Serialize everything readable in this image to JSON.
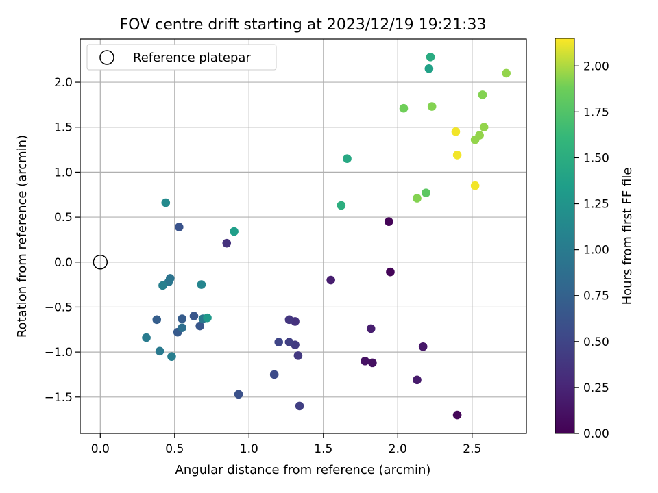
{
  "chart_data": {
    "type": "scatter",
    "title": "FOV centre drift starting at 2023/12/19 19:21:33",
    "xlabel": "Angular distance from reference (arcmin)",
    "ylabel": "Rotation from reference (arcmin)",
    "xlim": [
      -0.135,
      2.865
    ],
    "ylim": [
      -1.905,
      2.48
    ],
    "xticks": [
      0.0,
      0.5,
      1.0,
      1.5,
      2.0,
      2.5
    ],
    "xtick_labels": [
      "0.0",
      "0.5",
      "1.0",
      "1.5",
      "2.0",
      "2.5"
    ],
    "yticks": [
      -1.5,
      -1.0,
      -0.5,
      0.0,
      0.5,
      1.0,
      1.5,
      2.0
    ],
    "ytick_labels": [
      "−1.5",
      "−1.0",
      "−0.5",
      "0.0",
      "0.5",
      "1.0",
      "1.5",
      "2.0"
    ],
    "grid": true,
    "legend": {
      "placement": "top-left",
      "entries": [
        {
          "label": "Reference platepar",
          "marker": "open-circle",
          "color": "#000000"
        }
      ]
    },
    "reference_point": {
      "x": 0.0,
      "y": 0.0
    },
    "colorbar": {
      "label": "Hours from first FF file",
      "range": [
        0.0,
        2.15
      ],
      "ticks": [
        0.0,
        0.25,
        0.5,
        0.75,
        1.0,
        1.25,
        1.5,
        1.75,
        2.0
      ],
      "tick_labels": [
        "0.00",
        "0.25",
        "0.50",
        "0.75",
        "1.00",
        "1.25",
        "1.50",
        "1.75",
        "2.00"
      ],
      "colormap": "viridis"
    },
    "points": [
      {
        "x": 1.94,
        "y": 0.45,
        "c": 0.02
      },
      {
        "x": 1.95,
        "y": -0.11,
        "c": 0.03
      },
      {
        "x": 2.4,
        "y": -1.7,
        "c": 0.04
      },
      {
        "x": 1.83,
        "y": -1.12,
        "c": 0.1
      },
      {
        "x": 1.78,
        "y": -1.1,
        "c": 0.12
      },
      {
        "x": 2.17,
        "y": -0.94,
        "c": 0.15
      },
      {
        "x": 2.13,
        "y": -1.31,
        "c": 0.18
      },
      {
        "x": 1.55,
        "y": -0.2,
        "c": 0.2
      },
      {
        "x": 1.82,
        "y": -0.74,
        "c": 0.2
      },
      {
        "x": 0.85,
        "y": 0.21,
        "c": 0.35
      },
      {
        "x": 1.31,
        "y": -0.66,
        "c": 0.35
      },
      {
        "x": 1.27,
        "y": -0.64,
        "c": 0.38
      },
      {
        "x": 1.33,
        "y": -1.04,
        "c": 0.4
      },
      {
        "x": 1.31,
        "y": -0.92,
        "c": 0.42
      },
      {
        "x": 1.27,
        "y": -0.89,
        "c": 0.45
      },
      {
        "x": 1.34,
        "y": -1.6,
        "c": 0.45
      },
      {
        "x": 1.2,
        "y": -0.89,
        "c": 0.5
      },
      {
        "x": 1.17,
        "y": -1.25,
        "c": 0.55
      },
      {
        "x": 0.93,
        "y": -1.47,
        "c": 0.6
      },
      {
        "x": 0.53,
        "y": 0.39,
        "c": 0.62
      },
      {
        "x": 0.63,
        "y": -0.6,
        "c": 0.65
      },
      {
        "x": 0.67,
        "y": -0.71,
        "c": 0.65
      },
      {
        "x": 0.52,
        "y": -0.78,
        "c": 0.68
      },
      {
        "x": 0.55,
        "y": -0.63,
        "c": 0.7
      },
      {
        "x": 0.38,
        "y": -0.64,
        "c": 0.72
      },
      {
        "x": 0.55,
        "y": -0.73,
        "c": 0.88
      },
      {
        "x": 0.47,
        "y": -0.18,
        "c": 0.92
      },
      {
        "x": 0.46,
        "y": -0.22,
        "c": 0.95
      },
      {
        "x": 0.69,
        "y": -0.63,
        "c": 0.97
      },
      {
        "x": 0.4,
        "y": -0.99,
        "c": 0.98
      },
      {
        "x": 0.31,
        "y": -0.84,
        "c": 1.0
      },
      {
        "x": 0.48,
        "y": -1.05,
        "c": 1.03
      },
      {
        "x": 0.42,
        "y": -0.26,
        "c": 1.05
      },
      {
        "x": 0.68,
        "y": -0.25,
        "c": 1.1
      },
      {
        "x": 0.44,
        "y": 0.66,
        "c": 1.15
      },
      {
        "x": 0.72,
        "y": -0.62,
        "c": 1.3
      },
      {
        "x": 0.9,
        "y": 0.34,
        "c": 1.35
      },
      {
        "x": 1.66,
        "y": 1.15,
        "c": 1.45
      },
      {
        "x": 2.21,
        "y": 2.15,
        "c": 1.38
      },
      {
        "x": 2.22,
        "y": 2.28,
        "c": 1.48
      },
      {
        "x": 1.62,
        "y": 0.63,
        "c": 1.52
      },
      {
        "x": 2.19,
        "y": 0.77,
        "c": 1.8
      },
      {
        "x": 2.04,
        "y": 1.71,
        "c": 1.88
      },
      {
        "x": 2.13,
        "y": 0.71,
        "c": 1.92
      },
      {
        "x": 2.23,
        "y": 1.73,
        "c": 1.92
      },
      {
        "x": 2.57,
        "y": 1.86,
        "c": 1.92
      },
      {
        "x": 2.73,
        "y": 2.1,
        "c": 1.95
      },
      {
        "x": 2.58,
        "y": 1.5,
        "c": 1.95
      },
      {
        "x": 2.55,
        "y": 1.41,
        "c": 1.95
      },
      {
        "x": 2.52,
        "y": 1.36,
        "c": 1.95
      },
      {
        "x": 2.39,
        "y": 1.45,
        "c": 2.13
      },
      {
        "x": 2.4,
        "y": 1.19,
        "c": 2.13
      },
      {
        "x": 2.52,
        "y": 0.85,
        "c": 2.13
      }
    ]
  }
}
